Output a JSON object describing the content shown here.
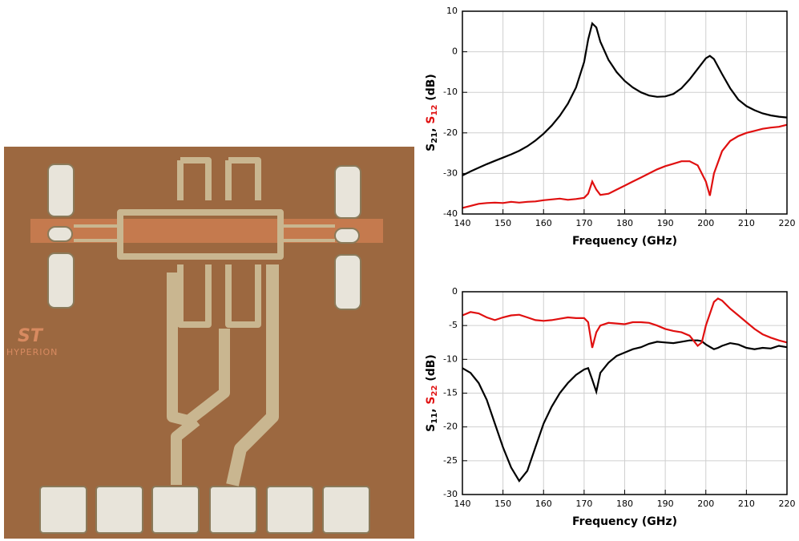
{
  "photo": {
    "label": "HYPERION"
  },
  "chart_data": [
    {
      "type": "line",
      "xlabel": "Frequency (GHz)",
      "ylabel": [
        {
          "text": "S"
        },
        {
          "text": "21",
          "sub": true
        },
        {
          "text": ", "
        },
        {
          "text": "S",
          "color": "#e01010"
        },
        {
          "text": "12",
          "sub": true,
          "color": "#e01010"
        },
        {
          "text": " (dB)"
        }
      ],
      "xlim": [
        140,
        220
      ],
      "xticks": [
        140,
        150,
        160,
        170,
        180,
        190,
        200,
        210,
        220
      ],
      "ylim": [
        -40,
        10
      ],
      "yticks": [
        -40,
        -30,
        -20,
        -10,
        0,
        10
      ],
      "grid": true,
      "x": [
        140,
        142,
        144,
        146,
        148,
        150,
        152,
        154,
        156,
        158,
        160,
        162,
        164,
        166,
        168,
        170,
        171,
        172,
        173,
        174,
        176,
        178,
        180,
        182,
        184,
        186,
        188,
        190,
        192,
        194,
        196,
        198,
        200,
        201,
        202,
        204,
        206,
        208,
        210,
        212,
        214,
        216,
        218,
        220
      ],
      "series": [
        {
          "name": "S21",
          "color": "#000000",
          "values": [
            -30.5,
            -29.5,
            -28.6,
            -27.7,
            -26.9,
            -26.1,
            -25.3,
            -24.4,
            -23.3,
            -21.9,
            -20.2,
            -18.2,
            -15.8,
            -12.8,
            -8.8,
            -2.5,
            3,
            7,
            6,
            2.5,
            -2,
            -5,
            -7.2,
            -8.8,
            -10,
            -10.8,
            -11.1,
            -11,
            -10.4,
            -9,
            -6.8,
            -4.2,
            -1.6,
            -1,
            -1.8,
            -5.5,
            -9,
            -11.8,
            -13.4,
            -14.4,
            -15.2,
            -15.7,
            -16,
            -16.2
          ]
        },
        {
          "name": "S12",
          "color": "#e01010",
          "values": [
            -38.5,
            -38,
            -37.5,
            -37.3,
            -37.2,
            -37.3,
            -37,
            -37.2,
            -37,
            -36.9,
            -36.6,
            -36.4,
            -36.2,
            -36.5,
            -36.3,
            -36,
            -35,
            -32,
            -34,
            -35.3,
            -35,
            -34,
            -33,
            -32,
            -31,
            -30,
            -29,
            -28.2,
            -27.6,
            -27,
            -27,
            -28,
            -32,
            -35.5,
            -30,
            -24.5,
            -22,
            -20.8,
            -20,
            -19.5,
            -19,
            -18.7,
            -18.5,
            -18
          ]
        }
      ]
    },
    {
      "type": "line",
      "xlabel": "Frequency (GHz)",
      "ylabel": [
        {
          "text": "S"
        },
        {
          "text": "11",
          "sub": true
        },
        {
          "text": ", "
        },
        {
          "text": "S",
          "color": "#e01010"
        },
        {
          "text": "22",
          "sub": true,
          "color": "#e01010"
        },
        {
          "text": " (dB)"
        }
      ],
      "xlim": [
        140,
        220
      ],
      "xticks": [
        140,
        150,
        160,
        170,
        180,
        190,
        200,
        210,
        220
      ],
      "ylim": [
        -30,
        0
      ],
      "yticks": [
        -30,
        -25,
        -20,
        -15,
        -10,
        -5,
        0
      ],
      "grid": true,
      "x": [
        140,
        142,
        144,
        146,
        148,
        150,
        152,
        154,
        156,
        158,
        160,
        162,
        164,
        166,
        168,
        170,
        171,
        172,
        173,
        174,
        176,
        178,
        180,
        182,
        184,
        186,
        188,
        190,
        192,
        194,
        196,
        198,
        199,
        200,
        202,
        203,
        204,
        206,
        208,
        210,
        212,
        214,
        216,
        218,
        220
      ],
      "series": [
        {
          "name": "S11",
          "color": "#000000",
          "values": [
            -11.3,
            -12,
            -13.5,
            -16,
            -19.5,
            -23,
            -26,
            -28,
            -26.5,
            -23,
            -19.5,
            -17,
            -15,
            -13.5,
            -12.3,
            -11.5,
            -11.3,
            -13,
            -14.8,
            -12,
            -10.5,
            -9.5,
            -9,
            -8.5,
            -8.2,
            -7.7,
            -7.4,
            -7.5,
            -7.6,
            -7.4,
            -7.2,
            -7.2,
            -7.3,
            -7.8,
            -8.5,
            -8.3,
            -8,
            -7.6,
            -7.8,
            -8.3,
            -8.5,
            -8.3,
            -8.4,
            -8,
            -8.2
          ]
        },
        {
          "name": "S22",
          "color": "#e01010",
          "values": [
            -3.5,
            -3,
            -3.2,
            -3.8,
            -4.2,
            -3.8,
            -3.5,
            -3.4,
            -3.8,
            -4.2,
            -4.3,
            -4.2,
            -4,
            -3.8,
            -3.9,
            -3.9,
            -4.5,
            -8.3,
            -6,
            -5,
            -4.6,
            -4.7,
            -4.8,
            -4.5,
            -4.5,
            -4.6,
            -5,
            -5.5,
            -5.8,
            -6,
            -6.5,
            -8,
            -7.5,
            -5,
            -1.5,
            -1,
            -1.3,
            -2.5,
            -3.5,
            -4.5,
            -5.5,
            -6.3,
            -6.8,
            -7.2,
            -7.5
          ]
        }
      ]
    }
  ]
}
